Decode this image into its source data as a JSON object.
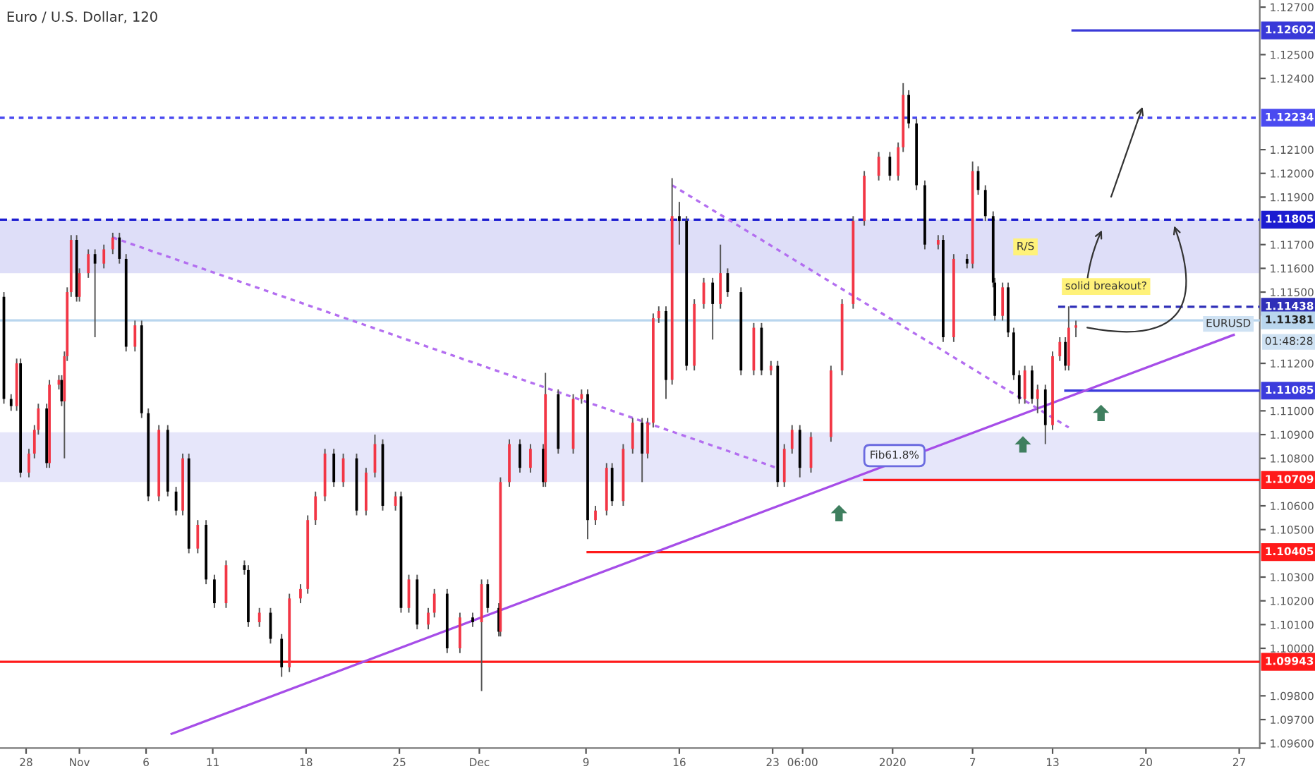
{
  "chart_data": {
    "type": "candlestick",
    "title": "Euro / U.S. Dollar, 120",
    "x": [
      "2019-10-26T08:00",
      "2019-10-26T21:00",
      "2019-10-27T07:00",
      "2019-10-27T14:00",
      "2019-10-28T05:00",
      "2019-10-28T15:00",
      "2019-10-28T22:00",
      "2019-10-29T13:00",
      "2019-10-29T18:00",
      "2019-10-30T11:00",
      "2019-10-30T16:00",
      "2019-10-30T21:00",
      "2019-10-31T02:00",
      "2019-10-31T09:00",
      "2019-10-31T19:00",
      "2019-11-01T00:00",
      "2019-11-01T16:00",
      "2019-11-02T04:00",
      "2019-11-02T20:00",
      "2019-11-03T12:00",
      "2019-11-04T00:00",
      "2019-11-04T12:00",
      "2019-11-05T04:00",
      "2019-11-05T16:00",
      "2019-11-06T04:00",
      "2019-11-06T23:00",
      "2019-11-07T15:00",
      "2019-11-08T06:00",
      "2019-11-08T18:00",
      "2019-11-09T05:00",
      "2019-11-09T21:00",
      "2019-11-10T12:00",
      "2019-11-11T03:00",
      "2019-11-12T00:00",
      "2019-11-13T09:00",
      "2019-11-13T16:00",
      "2019-11-14T12:00",
      "2019-11-15T08:00",
      "2019-11-16T04:00",
      "2019-11-16T18:00",
      "2019-11-17T14:00",
      "2019-11-18T03:00",
      "2019-11-18T17:00",
      "2019-11-19T10:00",
      "2019-11-20T02:00",
      "2019-11-20T19:00",
      "2019-11-21T19:00",
      "2019-11-22T12:00",
      "2019-11-23T04:00",
      "2019-11-23T18:00",
      "2019-11-24T17:00",
      "2019-11-25T03:00",
      "2019-11-25T17:00",
      "2019-11-26T08:00",
      "2019-11-27T04:00",
      "2019-11-27T15:00",
      "2019-11-28T14:00",
      "2019-11-29T13:00",
      "2019-11-30T12:00",
      "2019-12-01T04:00",
      "2019-12-01T15:00",
      "2019-12-02T11:00",
      "2019-12-02T14:00",
      "2019-12-03T06:00",
      "2019-12-04T01:00",
      "2019-12-04T20:00",
      "2019-12-05T19:00",
      "2019-12-05T23:00",
      "2019-12-06T22:00",
      "2019-12-08T01:00",
      "2019-12-08T16:00",
      "2019-12-09T03:00",
      "2019-12-09T17:00",
      "2019-12-10T13:00",
      "2019-12-10T23:00",
      "2019-12-11T19:00",
      "2019-12-12T12:00",
      "2019-12-13T05:00",
      "2019-12-13T15:00",
      "2019-12-14T01:00",
      "2019-12-14T11:00",
      "2019-12-15T00:00",
      "2019-12-15T11:00",
      "2019-12-16T00:00",
      "2019-12-16T13:00",
      "2019-12-17T03:00",
      "2019-12-17T20:00",
      "2019-12-18T12:00",
      "2019-12-19T02:00",
      "2019-12-19T15:00",
      "2019-12-20T15:00",
      "2019-12-21T14:00",
      "2019-12-22T04:00",
      "2019-12-22T21:00",
      "2019-12-23T09:00",
      "2019-12-23T21:00",
      "2019-12-24T11:00",
      "2019-12-25T01:00",
      "2019-12-25T21:00",
      "2019-12-27T09:00",
      "2019-12-28T05:00",
      "2019-12-29T01:00",
      "2019-12-29T21:00",
      "2019-12-30T23:00",
      "2019-12-31T19:00",
      "2020-01-01T10:00",
      "2020-01-01T19:00",
      "2020-01-02T05:00",
      "2020-01-02T19:00",
      "2020-01-03T10:00",
      "2020-01-04T10:00",
      "2020-01-04T19:00",
      "2020-01-05T14:00",
      "2020-01-06T14:00",
      "2020-01-07T00:00",
      "2020-01-07T10:00",
      "2020-01-07T23:00",
      "2020-01-08T13:00",
      "2020-01-08T16:00",
      "2020-01-09T06:00",
      "2020-01-09T16:00",
      "2020-01-10T02:00",
      "2020-01-10T12:00",
      "2020-01-10T22:00",
      "2020-01-11T11:00",
      "2020-01-11T21:00",
      "2020-01-12T11:00",
      "2020-01-13T00:00",
      "2020-01-13T13:00",
      "2020-01-13T23:00",
      "2020-01-14T05:00",
      "2020-01-14T18:00"
    ],
    "ohlc": [
      [
        1.1148,
        1.115,
        1.1103,
        1.1105
      ],
      [
        1.1105,
        1.1107,
        1.11,
        1.1102
      ],
      [
        1.1102,
        1.1122,
        1.11,
        1.112
      ],
      [
        1.112,
        1.1122,
        1.1072,
        1.1074
      ],
      [
        1.1074,
        1.1084,
        1.1072,
        1.1082
      ],
      [
        1.1082,
        1.1094,
        1.108,
        1.1092
      ],
      [
        1.1092,
        1.1103,
        1.109,
        1.1101
      ],
      [
        1.1101,
        1.1103,
        1.1076,
        1.1078
      ],
      [
        1.1078,
        1.1113,
        1.1076,
        1.1111
      ],
      [
        1.1111,
        1.1115,
        1.1109,
        1.1113
      ],
      [
        1.1113,
        1.1115,
        1.1102,
        1.1104
      ],
      [
        1.1104,
        1.1125,
        1.108,
        1.1123
      ],
      [
        1.1123,
        1.1152,
        1.1121,
        1.115
      ],
      [
        1.115,
        1.1174,
        1.1148,
        1.1172
      ],
      [
        1.1172,
        1.1174,
        1.1146,
        1.1148
      ],
      [
        1.1148,
        1.116,
        1.1146,
        1.1158
      ],
      [
        1.1158,
        1.1168,
        1.1156,
        1.1166
      ],
      [
        1.1166,
        1.1168,
        1.1131,
        1.1162
      ],
      [
        1.1162,
        1.117,
        1.116,
        1.1168
      ],
      [
        1.1168,
        1.1175,
        1.1166,
        1.1173
      ],
      [
        1.1173,
        1.1175,
        1.1162,
        1.1164
      ],
      [
        1.1164,
        1.1166,
        1.1125,
        1.1127
      ],
      [
        1.1127,
        1.1138,
        1.1125,
        1.1136
      ],
      [
        1.1136,
        1.1138,
        1.1097,
        1.1099
      ],
      [
        1.1099,
        1.1101,
        1.1062,
        1.1064
      ],
      [
        1.1064,
        1.1094,
        1.1062,
        1.1092
      ],
      [
        1.1092,
        1.1094,
        1.1064,
        1.1066
      ],
      [
        1.1066,
        1.1068,
        1.1056,
        1.1058
      ],
      [
        1.1058,
        1.1082,
        1.1056,
        1.108
      ],
      [
        1.108,
        1.1082,
        1.104,
        1.1042
      ],
      [
        1.1042,
        1.1054,
        1.104,
        1.1052
      ],
      [
        1.1052,
        1.1054,
        1.1027,
        1.1029
      ],
      [
        1.1029,
        1.1031,
        1.1017,
        1.1019
      ],
      [
        1.1019,
        1.1037,
        1.1017,
        1.1035
      ],
      [
        1.1035,
        1.1037,
        1.1031,
        1.1033
      ],
      [
        1.1033,
        1.1035,
        1.1009,
        1.1011
      ],
      [
        1.1011,
        1.1017,
        1.1009,
        1.1015
      ],
      [
        1.1015,
        1.1017,
        1.1002,
        1.1004
      ],
      [
        1.1004,
        1.1006,
        1.0988,
        1.0992
      ],
      [
        1.0992,
        1.1023,
        1.099,
        1.1021
      ],
      [
        1.1021,
        1.1027,
        1.1019,
        1.1025
      ],
      [
        1.1025,
        1.1056,
        1.1023,
        1.1054
      ],
      [
        1.1054,
        1.1066,
        1.1052,
        1.1064
      ],
      [
        1.1064,
        1.1084,
        1.1062,
        1.1082
      ],
      [
        1.1082,
        1.1084,
        1.1068,
        1.107
      ],
      [
        1.107,
        1.1082,
        1.1068,
        1.108
      ],
      [
        1.108,
        1.1082,
        1.1056,
        1.1058
      ],
      [
        1.1058,
        1.1076,
        1.1056,
        1.1074
      ],
      [
        1.1074,
        1.109,
        1.1072,
        1.1086
      ],
      [
        1.1086,
        1.1088,
        1.1058,
        1.106
      ],
      [
        1.106,
        1.1066,
        1.1058,
        1.1064
      ],
      [
        1.1064,
        1.1066,
        1.1015,
        1.1017
      ],
      [
        1.1017,
        1.1031,
        1.1015,
        1.1029
      ],
      [
        1.1029,
        1.1031,
        1.1008,
        1.101
      ],
      [
        1.101,
        1.1017,
        1.1008,
        1.1015
      ],
      [
        1.1015,
        1.1025,
        1.1013,
        1.1023
      ],
      [
        1.1023,
        1.1025,
        1.0998,
        1.1
      ],
      [
        1.1,
        1.1015,
        1.0998,
        1.1013
      ],
      [
        1.1013,
        1.1015,
        1.1009,
        1.1011
      ],
      [
        1.1011,
        1.1029,
        1.0982,
        1.1027
      ],
      [
        1.1027,
        1.1029,
        1.1015,
        1.1017
      ],
      [
        1.1017,
        1.1019,
        1.1005,
        1.1007
      ],
      [
        1.1007,
        1.1072,
        1.1005,
        1.107
      ],
      [
        1.107,
        1.1088,
        1.1068,
        1.1086
      ],
      [
        1.1086,
        1.1088,
        1.1074,
        1.1076
      ],
      [
        1.1076,
        1.1086,
        1.1074,
        1.1084
      ],
      [
        1.1084,
        1.1086,
        1.1068,
        1.107
      ],
      [
        1.107,
        1.1116,
        1.1068,
        1.1107
      ],
      [
        1.1107,
        1.1109,
        1.1082,
        1.1084
      ],
      [
        1.1084,
        1.1107,
        1.1082,
        1.1105
      ],
      [
        1.1105,
        1.1109,
        1.1103,
        1.1107
      ],
      [
        1.1107,
        1.1109,
        1.1046,
        1.1054
      ],
      [
        1.1054,
        1.106,
        1.1052,
        1.1058
      ],
      [
        1.1058,
        1.1078,
        1.1056,
        1.1076
      ],
      [
        1.1076,
        1.1078,
        1.106,
        1.1062
      ],
      [
        1.1062,
        1.1086,
        1.106,
        1.1084
      ],
      [
        1.1084,
        1.1097,
        1.1082,
        1.1095
      ],
      [
        1.1095,
        1.1097,
        1.107,
        1.1082
      ],
      [
        1.1082,
        1.1097,
        1.108,
        1.1095
      ],
      [
        1.1095,
        1.1141,
        1.1093,
        1.1139
      ],
      [
        1.1139,
        1.1144,
        1.1137,
        1.1142
      ],
      [
        1.1142,
        1.1144,
        1.1105,
        1.1113
      ],
      [
        1.1113,
        1.1198,
        1.1111,
        1.1182
      ],
      [
        1.1182,
        1.1188,
        1.117,
        1.118
      ],
      [
        1.118,
        1.1182,
        1.1117,
        1.1119
      ],
      [
        1.1119,
        1.1147,
        1.1117,
        1.1145
      ],
      [
        1.1145,
        1.1156,
        1.1143,
        1.1154
      ],
      [
        1.1154,
        1.1156,
        1.113,
        1.1145
      ],
      [
        1.1145,
        1.117,
        1.1143,
        1.1158
      ],
      [
        1.1158,
        1.116,
        1.1148,
        1.115
      ],
      [
        1.115,
        1.1152,
        1.1115,
        1.1117
      ],
      [
        1.1117,
        1.1137,
        1.1115,
        1.1135
      ],
      [
        1.1135,
        1.1137,
        1.1115,
        1.1117
      ],
      [
        1.1117,
        1.1121,
        1.1115,
        1.1119
      ],
      [
        1.1119,
        1.1121,
        1.1068,
        1.107
      ],
      [
        1.107,
        1.1086,
        1.1068,
        1.1084
      ],
      [
        1.1084,
        1.1094,
        1.1082,
        1.1092
      ],
      [
        1.1092,
        1.1094,
        1.1072,
        1.1076
      ],
      [
        1.1076,
        1.1091,
        1.1074,
        1.1089
      ],
      [
        1.1089,
        1.1119,
        1.1087,
        1.1117
      ],
      [
        1.1117,
        1.1147,
        1.1115,
        1.1145
      ],
      [
        1.1145,
        1.1182,
        1.1143,
        1.118
      ],
      [
        1.118,
        1.1201,
        1.1178,
        1.1199
      ],
      [
        1.1199,
        1.1209,
        1.1197,
        1.1207
      ],
      [
        1.1207,
        1.1209,
        1.1197,
        1.1199
      ],
      [
        1.1199,
        1.1213,
        1.1197,
        1.1211
      ],
      [
        1.1211,
        1.1238,
        1.1209,
        1.1233
      ],
      [
        1.1233,
        1.1235,
        1.1219,
        1.1221
      ],
      [
        1.1221,
        1.1223,
        1.1193,
        1.1195
      ],
      [
        1.1195,
        1.1197,
        1.1168,
        1.117
      ],
      [
        1.117,
        1.1174,
        1.1168,
        1.1172
      ],
      [
        1.1172,
        1.1174,
        1.1129,
        1.1131
      ],
      [
        1.1131,
        1.1166,
        1.1129,
        1.1164
      ],
      [
        1.1164,
        1.1166,
        1.116,
        1.1162
      ],
      [
        1.1162,
        1.1205,
        1.116,
        1.1201
      ],
      [
        1.1201,
        1.1203,
        1.1191,
        1.1193
      ],
      [
        1.1193,
        1.1195,
        1.118,
        1.1182
      ],
      [
        1.1182,
        1.1184,
        1.1152,
        1.1154
      ],
      [
        1.1154,
        1.1156,
        1.1138,
        1.114
      ],
      [
        1.114,
        1.1154,
        1.1138,
        1.1152
      ],
      [
        1.1152,
        1.1154,
        1.1131,
        1.1133
      ],
      [
        1.1133,
        1.1135,
        1.1113,
        1.1115
      ],
      [
        1.1115,
        1.1117,
        1.1103,
        1.1105
      ],
      [
        1.1105,
        1.1119,
        1.1103,
        1.1117
      ],
      [
        1.1117,
        1.1119,
        1.1103,
        1.1105
      ],
      [
        1.1105,
        1.1111,
        1.1099,
        1.1109
      ],
      [
        1.1109,
        1.1111,
        1.1086,
        1.1094
      ],
      [
        1.1094,
        1.1125,
        1.1092,
        1.1123
      ],
      [
        1.1123,
        1.1131,
        1.1121,
        1.1129
      ],
      [
        1.1129,
        1.1131,
        1.1117,
        1.1119
      ],
      [
        1.1119,
        1.1144,
        1.1117,
        1.1135
      ],
      [
        1.1135,
        1.1138,
        1.1131,
        1.1136
      ]
    ],
    "colors": [
      "#000000",
      "#000000",
      "#f23645",
      "#000000",
      "#f23645",
      "#f23645",
      "#f23645",
      "#000000",
      "#f23645",
      "#f23645",
      "#000000",
      "#f23645",
      "#f23645",
      "#f23645",
      "#000000",
      "#f23645",
      "#f23645",
      "#000000",
      "#f23645",
      "#f23645",
      "#000000",
      "#000000",
      "#f23645",
      "#000000",
      "#000000",
      "#f23645",
      "#000000",
      "#000000",
      "#f23645",
      "#000000",
      "#f23645",
      "#000000",
      "#000000",
      "#f23645",
      "#000000",
      "#000000",
      "#f23645",
      "#000000",
      "#000000",
      "#f23645",
      "#f23645",
      "#f23645",
      "#f23645",
      "#f23645",
      "#000000",
      "#f23645",
      "#000000",
      "#f23645",
      "#f23645",
      "#000000",
      "#f23645",
      "#000000",
      "#f23645",
      "#000000",
      "#f23645",
      "#f23645",
      "#000000",
      "#f23645",
      "#000000",
      "#f23645",
      "#000000",
      "#000000",
      "#f23645",
      "#f23645",
      "#000000",
      "#f23645",
      "#000000",
      "#f23645",
      "#000000",
      "#f23645",
      "#f23645",
      "#000000",
      "#f23645",
      "#f23645",
      "#000000",
      "#f23645",
      "#f23645",
      "#000000",
      "#f23645",
      "#f23645",
      "#f23645",
      "#000000",
      "#f23645",
      "#000000",
      "#000000",
      "#f23645",
      "#f23645",
      "#000000",
      "#f23645",
      "#000000",
      "#000000",
      "#f23645",
      "#000000",
      "#f23645",
      "#000000",
      "#f23645",
      "#f23645",
      "#000000",
      "#f23645",
      "#f23645",
      "#f23645",
      "#f23645",
      "#f23645",
      "#f23645",
      "#000000",
      "#f23645",
      "#f23645",
      "#000000",
      "#000000",
      "#000000",
      "#f23645",
      "#000000",
      "#f23645",
      "#000000",
      "#f23645",
      "#000000",
      "#000000",
      "#000000",
      "#000000",
      "#f23645",
      "#000000",
      "#000000",
      "#000000",
      "#f23645",
      "#000000",
      "#f23645",
      "#000000",
      "#f23645",
      "#f23645",
      "#000000",
      "#f23645",
      "#f23645"
    ],
    "series": [
      {
        "type": "line",
        "x": [
          "2020-01-14T12:00",
          "2020-01-28T13:00"
        ],
        "values": [
          1.12602,
          1.12602
        ],
        "color": "#3a3ad8",
        "line_style": "solid",
        "value_labels": [
          null,
          "1.12602"
        ]
      },
      {
        "type": "line",
        "x": [
          "2019-10-26T01:00",
          "2020-01-28T13:00"
        ],
        "values": [
          1.12234,
          1.12234
        ],
        "color": "#4b4bf0",
        "line_style": "dotted",
        "value_labels": [
          null,
          "1.12234"
        ]
      },
      {
        "type": "line",
        "x": [
          "2019-10-26T01:00",
          "2020-01-28T13:00"
        ],
        "values": [
          1.11805,
          1.11805
        ],
        "color": "#1c1cd0",
        "line_style": "dashed",
        "value_labels": [
          null,
          "1.11805"
        ]
      },
      {
        "type": "line",
        "x": [
          "2020-01-13T10:00",
          "2020-01-28T13:00"
        ],
        "values": [
          1.11438,
          1.11438
        ],
        "color": "#2f2fb8",
        "line_style": "dashed",
        "value_labels": [
          null,
          "1.11438"
        ]
      },
      {
        "type": "line",
        "x": [
          "2019-10-26T01:00",
          "2020-01-28T13:00"
        ],
        "values": [
          1.11381,
          1.11381
        ],
        "color": "#b9d6ee",
        "line_style": "solid",
        "value_labels": [
          null,
          "1.11381"
        ]
      },
      {
        "type": "line",
        "x": [
          "2020-01-13T23:00",
          "2020-01-28T13:00"
        ],
        "values": [
          1.11085,
          1.11085
        ],
        "color": "#3c3cdc",
        "line_style": "solid",
        "value_labels": [
          null,
          "1.11085"
        ]
      },
      {
        "type": "line",
        "x": [
          "2019-12-29T21:00",
          "2020-01-28T13:00"
        ],
        "values": [
          1.10709,
          1.10709
        ],
        "color": "#ff1a1a",
        "line_style": "solid",
        "value_labels": [
          null,
          "1.10709"
        ]
      },
      {
        "type": "line",
        "x": [
          "2019-12-09T03:00",
          "2020-01-28T13:00"
        ],
        "values": [
          1.10405,
          1.10405
        ],
        "color": "#ff1a1a",
        "line_style": "solid",
        "value_labels": [
          null,
          "1.10405"
        ]
      },
      {
        "type": "line",
        "x": [
          "2019-10-26T01:00",
          "2020-01-28T13:00"
        ],
        "values": [
          1.09943,
          1.09943
        ],
        "color": "#ff1a1a",
        "line_style": "solid",
        "value_labels": [
          null,
          "1.09943"
        ]
      },
      {
        "type": "line",
        "x": [
          "2019-11-07T22:00",
          "2020-01-26T14:00"
        ],
        "values": [
          1.0964,
          1.1132
        ],
        "color": "#a64de8",
        "line_style": "solid"
      },
      {
        "type": "line",
        "x": [
          "2019-11-03T12:00",
          "2019-12-23T07:00"
        ],
        "values": [
          1.1173,
          1.1076
        ],
        "color": "#b36ef0",
        "line_style": "dotted"
      },
      {
        "type": "line",
        "x": [
          "2019-12-15T11:00",
          "2020-01-14T05:00"
        ],
        "values": [
          1.1195,
          1.1093
        ],
        "color": "#b36ef0",
        "line_style": "dotted"
      }
    ],
    "bands": [
      {
        "axis": "y",
        "from": 1.1158,
        "to": 1.11805,
        "color": "#dedef8"
      },
      {
        "axis": "y",
        "from": 1.107,
        "to": 1.1091,
        "color": "#e6e6fa"
      }
    ],
    "annotations": [
      "R/S",
      "solid breakout?",
      "Fib61.8%",
      "EURUSD",
      "01:48:28"
    ],
    "xlim": [
      "2019-10-26T01:00",
      "2020-01-28T13:00"
    ],
    "ylim": [
      1.0958,
      1.1273
    ],
    "xticks": [
      {
        "value": "2019-10-28",
        "label": "28"
      },
      {
        "value": "2019-11",
        "label": "Nov"
      },
      {
        "value": "2019-11-06",
        "label": "6"
      },
      {
        "value": "2019-11-11",
        "label": "11"
      },
      {
        "value": "2019-11-18",
        "label": "18"
      },
      {
        "value": "2019-11-25",
        "label": "25"
      },
      {
        "value": "2019-12",
        "label": "Dec"
      },
      {
        "value": "2019-12-09",
        "label": "9"
      },
      {
        "value": "2019-12-16",
        "label": "16"
      },
      {
        "value": "2019-12-23",
        "label": "23"
      },
      {
        "value": "2019-12-25T06:00",
        "label": "06:00"
      },
      {
        "value": "2020",
        "label": "2020"
      },
      {
        "value": "2020-01-07",
        "label": "7"
      },
      {
        "value": "2020-01-13",
        "label": "13"
      },
      {
        "value": "2020-01-20",
        "label": "20"
      },
      {
        "value": "2020-01-27",
        "label": "27"
      }
    ],
    "yticks": [
      {
        "value": 1.127,
        "label": "1.12700"
      },
      {
        "value": 1.125,
        "label": "1.12500"
      },
      {
        "value": 1.124,
        "label": "1.12400"
      },
      {
        "value": 1.121,
        "label": "1.12100"
      },
      {
        "value": 1.12,
        "label": "1.12000"
      },
      {
        "value": 1.119,
        "label": "1.11900"
      },
      {
        "value": 1.117,
        "label": "1.11700"
      },
      {
        "value": 1.116,
        "label": "1.11600"
      },
      {
        "value": 1.115,
        "label": "1.11500"
      },
      {
        "value": 1.112,
        "label": "1.11200"
      },
      {
        "value": 1.11,
        "label": "1.11000"
      },
      {
        "value": 1.109,
        "label": "1.10900"
      },
      {
        "value": 1.108,
        "label": "1.10800"
      },
      {
        "value": 1.106,
        "label": "1.10600"
      },
      {
        "value": 1.105,
        "label": "1.10500"
      },
      {
        "value": 1.103,
        "label": "1.10300"
      },
      {
        "value": 1.102,
        "label": "1.10200"
      },
      {
        "value": 1.101,
        "label": "1.10100"
      },
      {
        "value": 1.1,
        "label": "1.10000"
      },
      {
        "value": 1.098,
        "label": "1.09800"
      },
      {
        "value": 1.097,
        "label": "1.09700"
      },
      {
        "value": 1.096,
        "label": "1.09600"
      }
    ]
  }
}
